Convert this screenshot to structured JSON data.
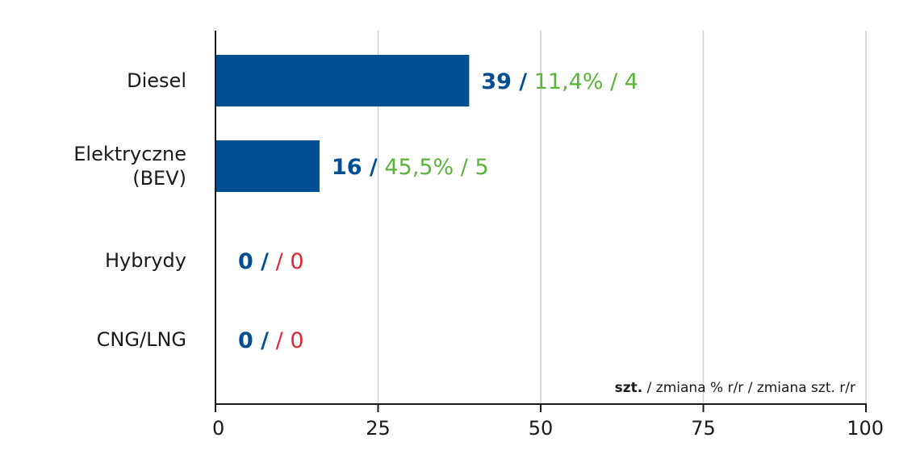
{
  "chart_data": {
    "type": "bar",
    "orientation": "horizontal",
    "categories": [
      "Diesel",
      "Elektryczne (BEV)",
      "Hybrydy",
      "CNG/LNG"
    ],
    "category_lines": [
      [
        "Diesel"
      ],
      [
        "Elektryczne",
        "(BEV)"
      ],
      [
        "Hybrydy"
      ],
      [
        "CNG/LNG"
      ]
    ],
    "values": [
      39,
      16,
      0,
      0
    ],
    "value_labels": [
      {
        "units": "39",
        "pct": "11,4%",
        "change": "4",
        "trend": "positive"
      },
      {
        "units": "16",
        "pct": "45,5%",
        "change": "5",
        "trend": "positive"
      },
      {
        "units": "0",
        "pct": "",
        "change": "0",
        "trend": "negative"
      },
      {
        "units": "0",
        "pct": "",
        "change": "0",
        "trend": "negative"
      }
    ],
    "xlim": [
      0,
      100
    ],
    "xticks": [
      0,
      25,
      50,
      75,
      100
    ],
    "grid": true,
    "legend": {
      "bold": "szt.",
      "rest": " / zmiana % r/r / zmiana szt. r/r",
      "placement": "bottom-right"
    },
    "colors": {
      "bar": "#004f93",
      "units": "#004f93",
      "positive": "#5bb33a",
      "negative": "#e0262e",
      "grid": "#d0d0d0",
      "axis": "#1a1a1a"
    }
  }
}
